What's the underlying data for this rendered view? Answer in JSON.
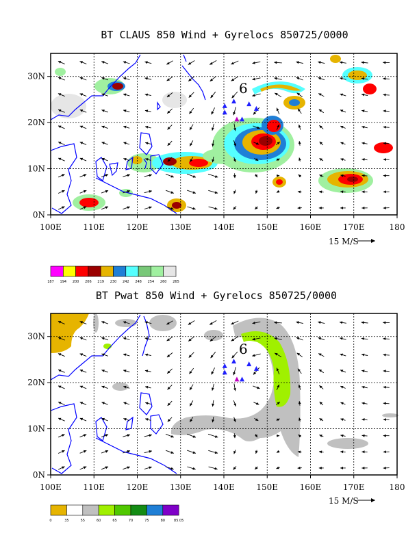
{
  "chart_data": [
    {
      "type": "other",
      "title": "BT CLAUS 850 Wind + Gyrelocs 850725/0000",
      "x_ticks": [
        "100E",
        "110E",
        "120E",
        "130E",
        "140E",
        "150E",
        "160E",
        "170E",
        "180"
      ],
      "y_ticks": [
        "0N",
        "10N",
        "20N",
        "30N"
      ],
      "xlim": [
        100,
        180
      ],
      "ylim": [
        0,
        35
      ],
      "vector_reference": "15 M/S",
      "colorbar": {
        "labels": [
          "187",
          "194",
          "200",
          "206",
          "219",
          "230",
          "242",
          "248",
          "254",
          "260",
          "265"
        ],
        "colors": [
          "#ff00ff",
          "#ffff00",
          "#ff0000",
          "#9b0000",
          "#e6b400",
          "#1f7fd6",
          "#55ffff",
          "#78c878",
          "#a0f0a0",
          "#e6e6e6"
        ]
      },
      "gyre_symbol": "6",
      "markers": [
        {
          "lon": 140.2,
          "lat": 23.6,
          "shape": "triangle",
          "color": "#2020ff"
        },
        {
          "lon": 140.2,
          "lat": 22.2,
          "shape": "triangle",
          "color": "#2020ff"
        },
        {
          "lon": 142.3,
          "lat": 24.6,
          "shape": "triangle",
          "color": "#2020ff"
        },
        {
          "lon": 145.8,
          "lat": 24.0,
          "shape": "triangle",
          "color": "#2020ff"
        },
        {
          "lon": 147.5,
          "lat": 23.0,
          "shape": "triangle",
          "color": "#2020ff"
        },
        {
          "lon": 143.0,
          "lat": 20.7,
          "shape": "triangle",
          "color": "#c000c0"
        },
        {
          "lon": 144.2,
          "lat": 20.7,
          "shape": "triangle",
          "color": "#2020ff"
        }
      ]
    },
    {
      "type": "other",
      "title": "BT Pwat 850 Wind + Gyrelocs 850725/0000",
      "x_ticks": [
        "100E",
        "110E",
        "120E",
        "130E",
        "140E",
        "150E",
        "160E",
        "170E",
        "180"
      ],
      "y_ticks": [
        "0N",
        "10N",
        "20N",
        "30N"
      ],
      "xlim": [
        100,
        180
      ],
      "ylim": [
        0,
        35
      ],
      "vector_reference": "15 M/S",
      "colorbar": {
        "labels": [
          "0",
          "35",
          "55",
          "60",
          "65",
          "70",
          "75",
          "80",
          "85.05"
        ],
        "colors": [
          "#e6b400",
          "#ffffff",
          "#c0c0c0",
          "#a0f000",
          "#50c800",
          "#148c14",
          "#1f7fd6",
          "#7f00c8"
        ]
      },
      "gyre_symbol": "6",
      "markers": [
        {
          "lon": 140.2,
          "lat": 23.6,
          "shape": "triangle",
          "color": "#2020ff"
        },
        {
          "lon": 140.2,
          "lat": 22.2,
          "shape": "triangle",
          "color": "#2020ff"
        },
        {
          "lon": 142.3,
          "lat": 24.6,
          "shape": "triangle",
          "color": "#2020ff"
        },
        {
          "lon": 145.8,
          "lat": 24.0,
          "shape": "triangle",
          "color": "#2020ff"
        },
        {
          "lon": 147.5,
          "lat": 23.0,
          "shape": "triangle",
          "color": "#2020ff"
        },
        {
          "lon": 143.0,
          "lat": 20.7,
          "shape": "triangle",
          "color": "#c000c0"
        },
        {
          "lon": 144.2,
          "lat": 20.7,
          "shape": "triangle",
          "color": "#2020ff"
        }
      ]
    }
  ]
}
